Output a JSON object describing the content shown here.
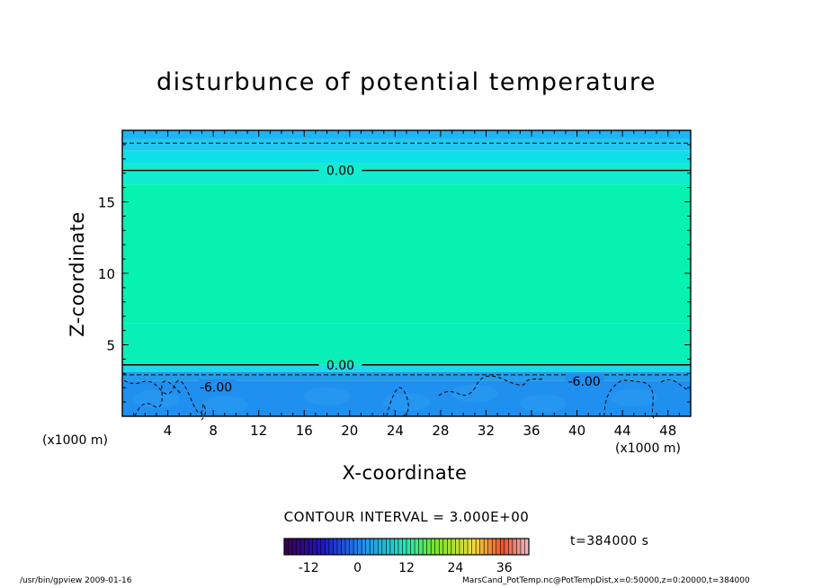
{
  "chart_data": {
    "type": "heatmap",
    "title": "disturbunce of potential temperature",
    "xlabel": "X-coordinate",
    "ylabel": "Z-coordinate",
    "x_unit_label": "(x1000 m)",
    "xlim": [
      0,
      50
    ],
    "ylim": [
      0,
      20
    ],
    "x_ticks": [
      4,
      8,
      12,
      16,
      20,
      24,
      28,
      32,
      36,
      40,
      44,
      48
    ],
    "y_ticks": [
      5,
      10,
      15
    ],
    "contour_interval": "CONTOUR INTERVAL = 3.000E+00",
    "time_label": "t=384000 s",
    "colorbar": {
      "range": [
        -18,
        42
      ],
      "ticks": [
        -12,
        0,
        12,
        24,
        36
      ]
    },
    "color_bands": [
      {
        "z0": 19.4,
        "z1": 20.0,
        "color": "#1fb4f5"
      },
      {
        "z0": 18.6,
        "z1": 19.4,
        "color": "#22c8f0"
      },
      {
        "z0": 17.7,
        "z1": 18.6,
        "color": "#0fe0e8"
      },
      {
        "z0": 16.2,
        "z1": 17.7,
        "color": "#12ecd0"
      },
      {
        "z0": 6.5,
        "z1": 16.2,
        "color": "#05f2b0"
      },
      {
        "z0": 3.6,
        "z1": 6.5,
        "color": "#08f0b8"
      },
      {
        "z0": 3.1,
        "z1": 3.6,
        "color": "#1ed9e8"
      },
      {
        "z0": 2.5,
        "z1": 3.1,
        "color": "#209ee8"
      },
      {
        "z0": 0.0,
        "z1": 2.5,
        "color": "#1f8ff0"
      }
    ],
    "contours": [
      {
        "level": "0.00",
        "z": 17.2,
        "style": "solid",
        "label_x": 17.6
      },
      {
        "level": "",
        "z": 19.1,
        "style": "dashed",
        "label_x": null
      },
      {
        "level": "0.00",
        "z": 3.6,
        "style": "solid",
        "label_x": 17.6
      },
      {
        "level": "",
        "z": 2.9,
        "style": "dashed",
        "label_x": null
      }
    ],
    "contour_labels": [
      {
        "text": "-6.00",
        "x": 6.8,
        "z": 1.8
      },
      {
        "text": "-6.00",
        "x": 39.2,
        "z": 2.2
      }
    ]
  },
  "footer": {
    "left": "/usr/bin/gpview   2009-01-16",
    "right": "MarsCand_PotTemp.nc@PotTempDist,x=0:50000,z=0:20000,t=384000"
  }
}
